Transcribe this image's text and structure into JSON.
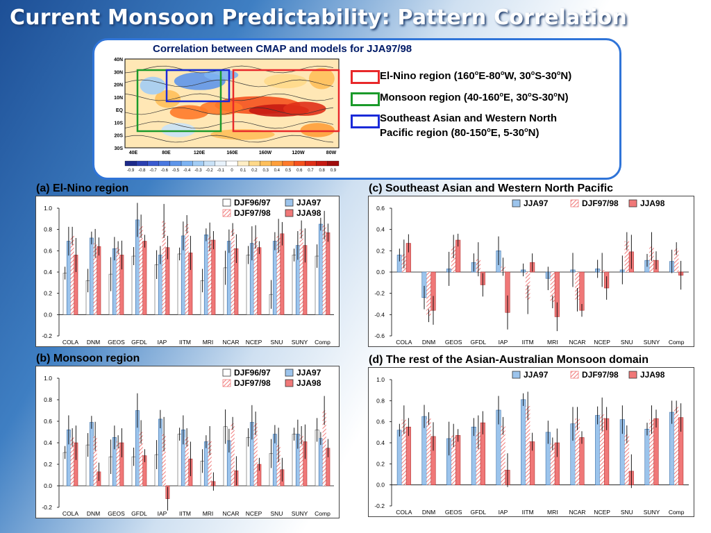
{
  "title": "Current Monsoon Predictability: Pattern Correlation",
  "map_caption": "Correlation between CMAP and models for JJA97/98",
  "map": {
    "lat_labels": [
      "40N",
      "30N",
      "20N",
      "10N",
      "EQ",
      "10S",
      "20S",
      "30S"
    ],
    "lon_labels": [
      "40E",
      "80E",
      "120E",
      "160E",
      "160W",
      "120W",
      "80W"
    ],
    "colorbar_labels": [
      "-0.9",
      "-0.8",
      "-0.7",
      "-0.6",
      "-0.5",
      "-0.4",
      "-0.3",
      "-0.2",
      "-0.1",
      "0",
      "0.1",
      "0.2",
      "0.3",
      "0.4",
      "0.5",
      "0.6",
      "0.7",
      "0.8",
      "0.9"
    ],
    "colorbar_colors": [
      "#1d2a8a",
      "#2a3fb0",
      "#3a5ad0",
      "#4a78e0",
      "#5f96ea",
      "#7db3f2",
      "#a3cdf5",
      "#c9e2f7",
      "#e8f2fb",
      "#ffffff",
      "#ffeec5",
      "#ffd98a",
      "#ffbf5a",
      "#ff9f3a",
      "#ff7a2a",
      "#f5521e",
      "#e03018",
      "#c61a12",
      "#a00d0d"
    ]
  },
  "region_legend": [
    {
      "color": "#e8282a",
      "text_parts": [
        "El-Nino region (160",
        "o",
        "E-80",
        "o",
        "W, 30",
        "o",
        "S-30",
        "o",
        "N)"
      ]
    },
    {
      "color": "#1a9a2a",
      "text_parts": [
        "Monsoon region (40-160",
        "o",
        "E, 30",
        "o",
        "S-30",
        "o",
        "N)"
      ]
    },
    {
      "color": "#1a2ad8",
      "line1": "Southeast Asian and Western North",
      "text_parts": [
        "Pacific region (80-150",
        "o",
        "E, 5-30",
        "o",
        "N)"
      ]
    }
  ],
  "colors": {
    "djf9697": "#ffffff",
    "jja97": "#9cc4ec",
    "djf9798": "#f07a7a",
    "jja98": "#f07878"
  },
  "panels": [
    {
      "title": "(a) El-Nino region"
    },
    {
      "title": "(c) Southeast Asian and Western North Pacific"
    },
    {
      "title": "(b) Monsoon region"
    },
    {
      "title": "(d) The rest of the Asian-Australian Monsoon domain"
    }
  ],
  "chart_data": [
    {
      "type": "bar",
      "title": "(a) El-Nino region",
      "categories": [
        "COLA",
        "DNM",
        "GEOS",
        "GFDL",
        "IAP",
        "IITM",
        "MRI",
        "NCAR",
        "NCEP",
        "SNU",
        "SUNY",
        "Comp"
      ],
      "ylim": [
        -0.2,
        1.0
      ],
      "yticks": [
        "1.0",
        "0.8",
        "0.6",
        "0.4",
        "0.2",
        "0.0",
        "-0.2"
      ],
      "legend": [
        "DJF96/97",
        "JJA97",
        "DJF97/98",
        "JJA98"
      ],
      "series": [
        {
          "name": "DJF96/97",
          "values": [
            0.39,
            0.32,
            0.38,
            0.55,
            0.47,
            0.57,
            0.32,
            0.44,
            0.56,
            0.19,
            0.56,
            0.55
          ]
        },
        {
          "name": "JJA97",
          "values": [
            0.69,
            0.72,
            0.62,
            0.89,
            0.56,
            0.74,
            0.75,
            0.69,
            0.67,
            0.69,
            0.65,
            0.85
          ]
        },
        {
          "name": "DJF97/98",
          "values": [
            0.74,
            0.67,
            0.63,
            0.83,
            0.88,
            0.85,
            0.73,
            0.8,
            0.73,
            0.74,
            0.8,
            0.84
          ]
        },
        {
          "name": "JJA98",
          "values": [
            0.56,
            0.64,
            0.56,
            0.69,
            0.63,
            0.58,
            0.7,
            0.62,
            0.63,
            0.76,
            0.65,
            0.77
          ]
        }
      ]
    },
    {
      "type": "bar",
      "title": "(c) Southeast Asian and Western North Pacific",
      "categories": [
        "COLA",
        "DNM",
        "GEOS",
        "GFDL",
        "IAP",
        "IITM",
        "MRI",
        "NCAR",
        "NCEP",
        "SNU",
        "SUNY",
        "Comp"
      ],
      "ylim": [
        -0.6,
        0.6
      ],
      "yticks": [
        "0.6",
        "0.4",
        "0.2",
        "0.0",
        "-0.2",
        "-0.4",
        "-0.6"
      ],
      "legend": [
        "JJA97",
        "DJF97/98",
        "JJA98"
      ],
      "series": [
        {
          "name": "JJA97",
          "values": [
            0.16,
            -0.24,
            0.03,
            0.09,
            0.2,
            0.02,
            -0.06,
            0.02,
            0.03,
            0.02,
            0.11,
            0.1
          ]
        },
        {
          "name": "DJF97/98",
          "values": [
            0.17,
            -0.41,
            0.24,
            0.12,
            0.05,
            -0.26,
            -0.28,
            -0.26,
            0.02,
            0.29,
            0.24,
            0.22
          ]
        },
        {
          "name": "JJA98",
          "values": [
            0.27,
            -0.36,
            0.3,
            -0.12,
            -0.38,
            0.09,
            -0.42,
            -0.36,
            -0.15,
            0.19,
            0.11,
            -0.03
          ]
        }
      ]
    },
    {
      "type": "bar",
      "title": "(b) Monsoon region",
      "categories": [
        "COLA",
        "DNM",
        "GEOS",
        "GFDL",
        "IAP",
        "IITM",
        "MRI",
        "NCAR",
        "NCEP",
        "SNU",
        "SUNY",
        "Comp"
      ],
      "ylim": [
        -0.2,
        1.0
      ],
      "yticks": [
        "1.0",
        "0.8",
        "0.6",
        "0.4",
        "0.2",
        "0.0",
        "-0.2"
      ],
      "legend": [
        "DJF96/97",
        "JJA97",
        "DJF97/98",
        "JJA98"
      ],
      "series": [
        {
          "name": "DJF96/97",
          "values": [
            0.31,
            0.38,
            0.27,
            0.27,
            0.29,
            0.48,
            0.23,
            0.55,
            0.45,
            0.3,
            0.48,
            0.52
          ]
        },
        {
          "name": "JJA97",
          "values": [
            0.52,
            0.59,
            0.45,
            0.7,
            0.62,
            0.52,
            0.41,
            0.42,
            0.59,
            0.48,
            0.48,
            0.44
          ]
        },
        {
          "name": "DJF97/98",
          "values": [
            0.45,
            0.46,
            0.41,
            0.5,
            0.48,
            0.45,
            0.42,
            0.58,
            0.58,
            0.38,
            0.47,
            0.7
          ]
        },
        {
          "name": "JJA98",
          "values": [
            0.4,
            0.13,
            0.4,
            0.28,
            -0.12,
            0.25,
            0.04,
            0.14,
            0.2,
            0.15,
            0.41,
            0.35
          ]
        }
      ]
    },
    {
      "type": "bar",
      "title": "(d) The rest of the Asian-Australian Monsoon domain",
      "categories": [
        "COLA",
        "DNM",
        "GEOS",
        "GFDL",
        "IAP",
        "IITM",
        "MRI",
        "NCAR",
        "NCEP",
        "SNU",
        "SUNY",
        "Comp"
      ],
      "ylim": [
        -0.2,
        1.0
      ],
      "yticks": [
        "1.0",
        "0.8",
        "0.6",
        "0.4",
        "0.2",
        "0.0",
        "-0.2"
      ],
      "legend": [
        "JJA97",
        "DJF97/98",
        "JJA98"
      ],
      "series": [
        {
          "name": "JJA97",
          "values": [
            0.52,
            0.65,
            0.44,
            0.55,
            0.71,
            0.81,
            0.5,
            0.58,
            0.66,
            0.62,
            0.53,
            0.69
          ]
        },
        {
          "name": "DJF97/98",
          "values": [
            0.62,
            0.63,
            0.47,
            0.5,
            0.56,
            0.75,
            0.39,
            0.63,
            0.67,
            0.48,
            0.62,
            0.74
          ]
        },
        {
          "name": "JJA98",
          "values": [
            0.55,
            0.46,
            0.47,
            0.59,
            0.14,
            0.41,
            0.4,
            0.45,
            0.63,
            0.13,
            0.63,
            0.64
          ]
        }
      ]
    }
  ]
}
